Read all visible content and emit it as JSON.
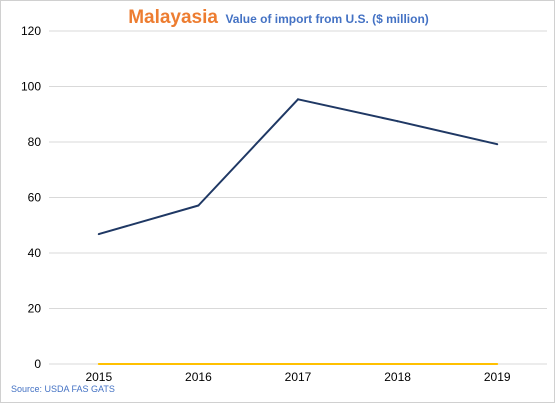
{
  "chart_data": {
    "type": "line",
    "title": "Malayasia",
    "subtitle": "Value of import from U.S. ($ million)",
    "categories": [
      "2015",
      "2016",
      "2017",
      "2018",
      "2019"
    ],
    "series": [
      {
        "values": [
          46.8,
          57.1,
          95.4,
          87.5,
          79.2
        ],
        "color": "#1F3864"
      },
      {
        "values": [
          0,
          0,
          0,
          0,
          0
        ],
        "color": "#FFC000"
      }
    ],
    "ylim": [
      0,
      120
    ],
    "yticks": [
      0,
      20,
      40,
      60,
      80,
      100,
      120
    ],
    "grid": true,
    "gridColor": "#d9d9d9",
    "source": "Source: USDA FAS GATS"
  }
}
